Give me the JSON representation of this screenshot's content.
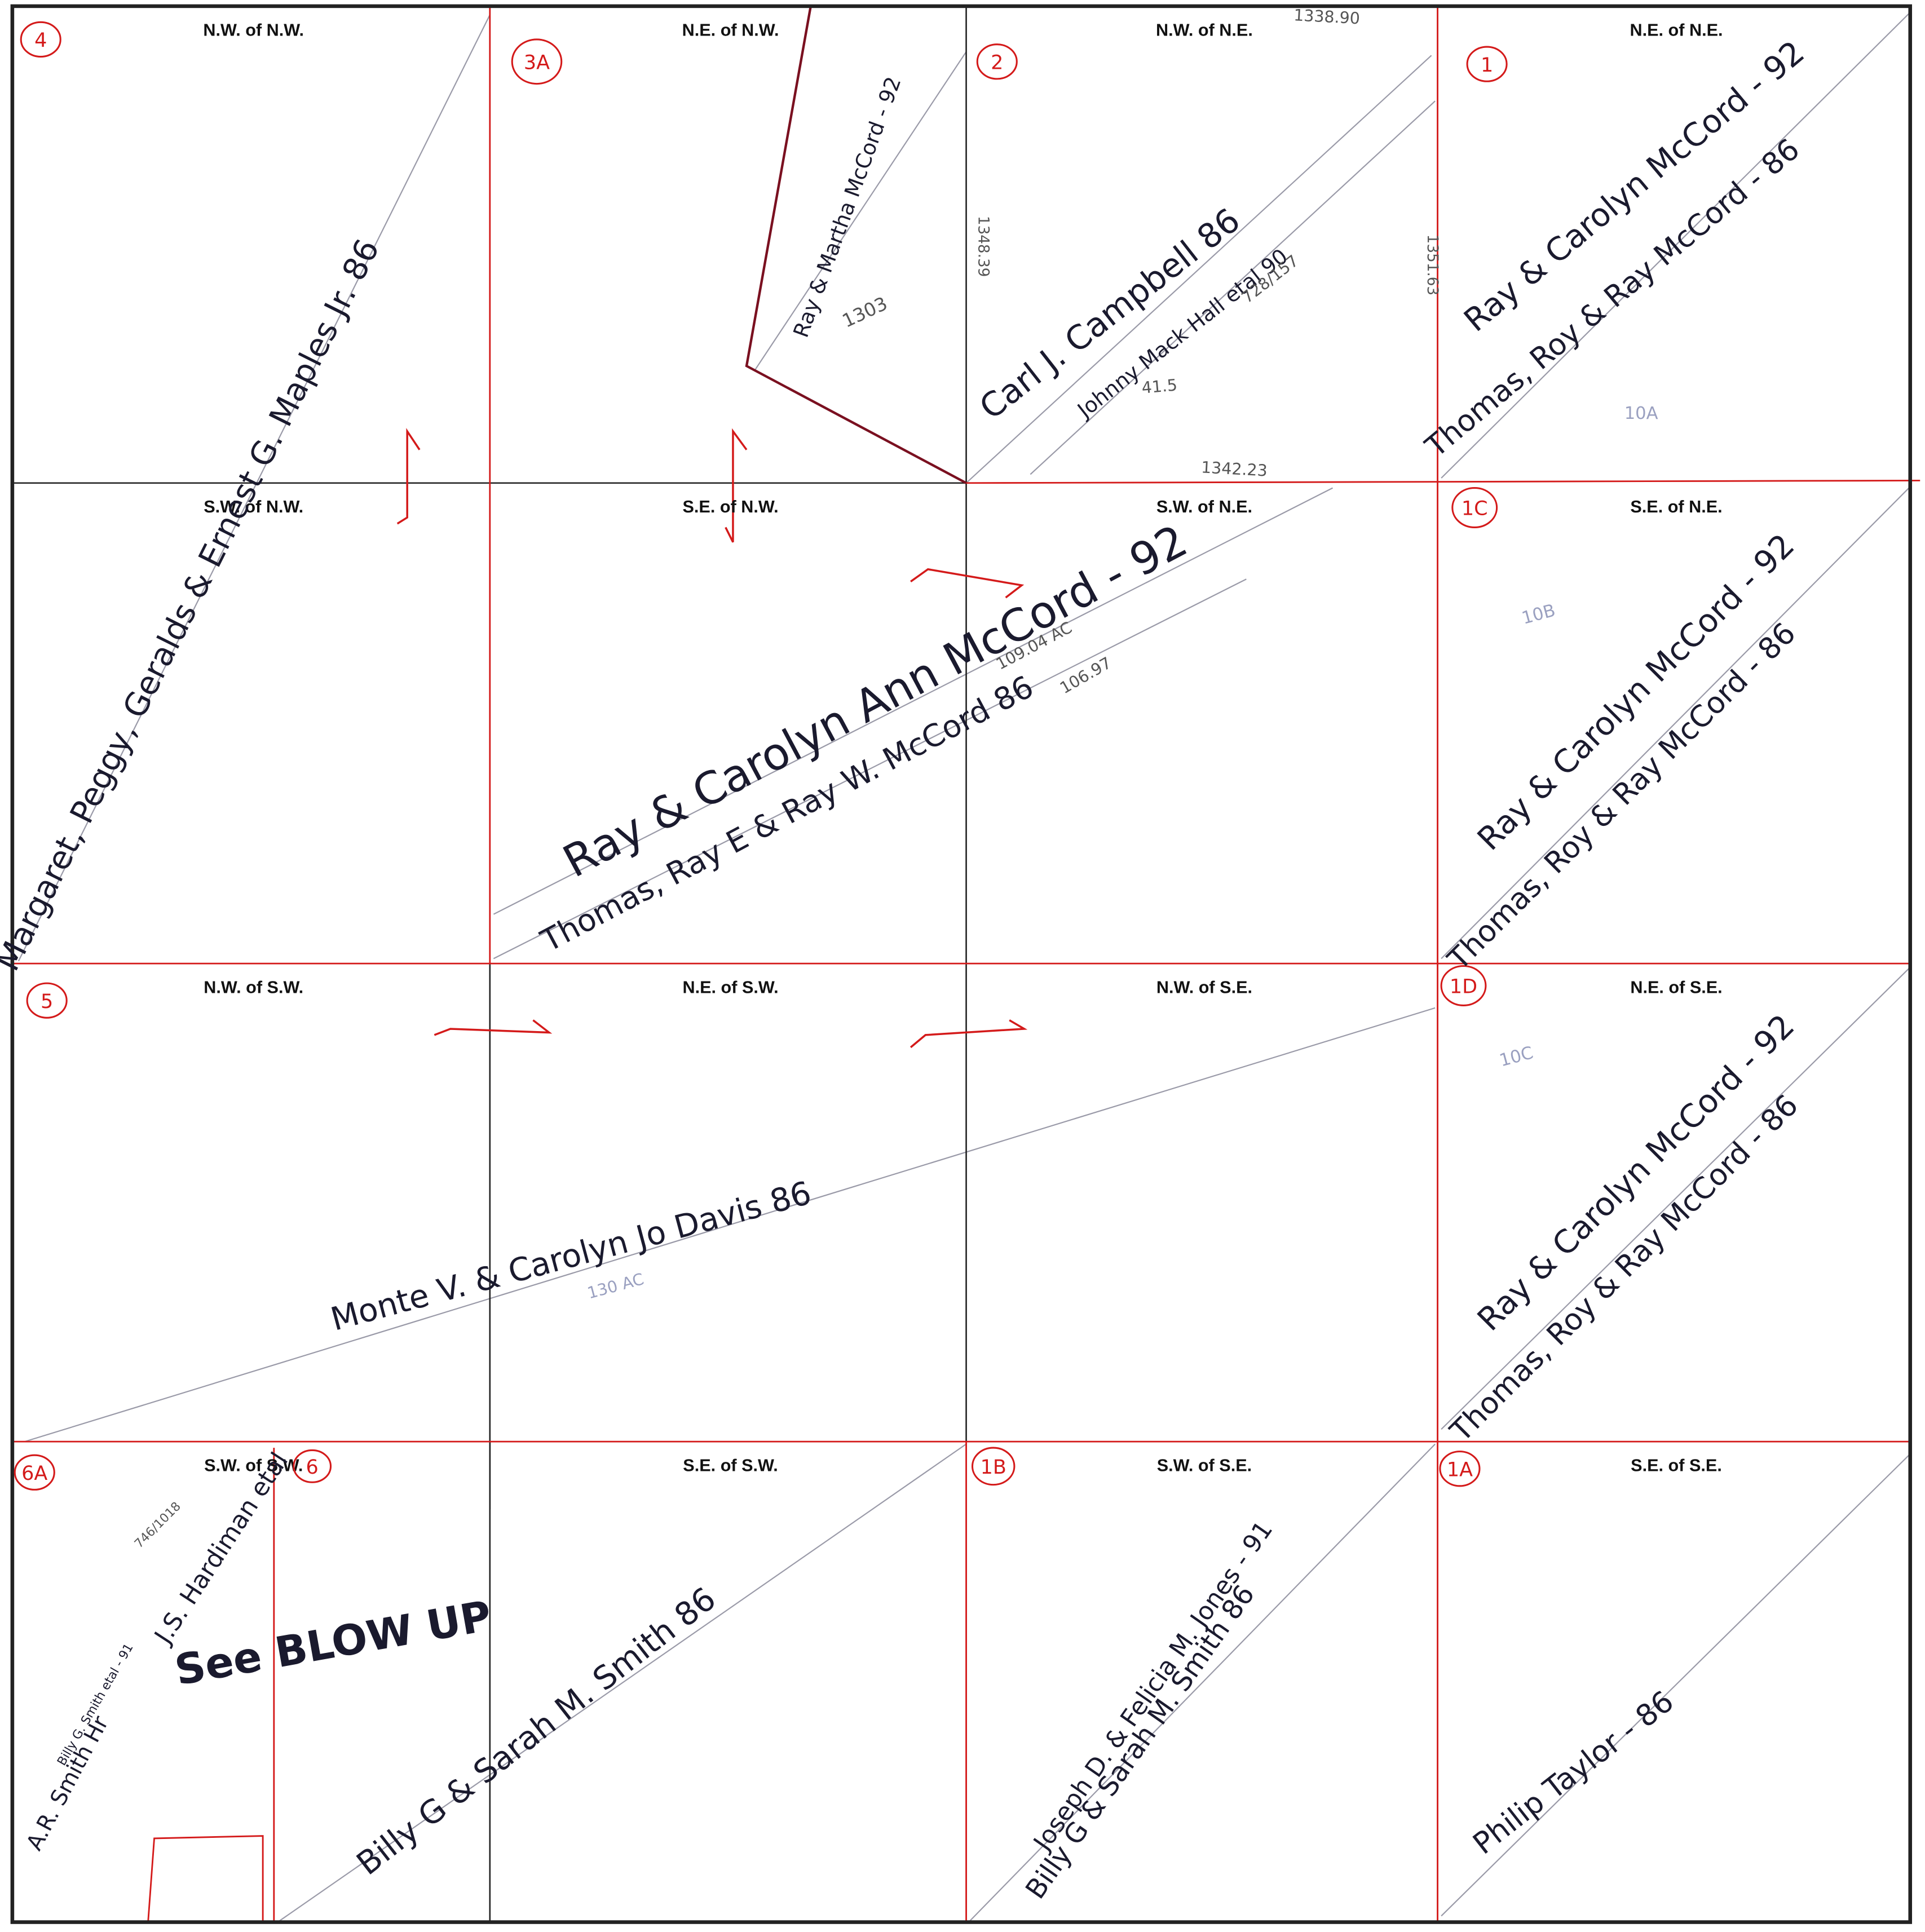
{
  "cells": [
    "N.W. of N.W.",
    "N.E. of N.W.",
    "N.W. of N.E.",
    "N.E. of N.E.",
    "S.W. of N.W.",
    "S.E. of N.W.",
    "S.W. of N.E.",
    "S.E. of N.E.",
    "N.W. of S.W.",
    "N.E. of S.W.",
    "N.W. of S.E.",
    "N.E. of S.E.",
    "S.W. of S.W.",
    "S.E. of S.W.",
    "S.W. of S.E.",
    "S.E. of S.E."
  ],
  "tags": [
    "4",
    "3A",
    "2",
    "1",
    "1C",
    "5",
    "1D",
    "6A",
    "6",
    "1B",
    "1A"
  ],
  "owners": [
    "Margaret, Peggy, Geralds & Ernest G. Maples Jr. 86",
    "Ray & Martha McCord - 92",
    "Carl J. Campbell 86",
    "Johnny Mack Hall etal 90",
    "Ray & Carolyn McCord - 92",
    "Thomas, Roy & Ray McCord - 86",
    "Ray & Carolyn Ann McCord - 92",
    "Thomas, Ray E & Ray W. McCord 86",
    "Ray & Carolyn McCord - 92",
    "Thomas, Roy & Ray McCord - 86",
    "Ray & Carolyn McCord - 92",
    "Thomas, Roy & Ray McCord - 86",
    "Monte V. & Carolyn Jo Davis 86",
    "J.S. Hardiman etal",
    "Billy G. Smith etal - 91",
    "A.R. Smith Hr",
    "Billy G & Sarah M. Smith 86",
    "Joseph D. & Felicia M. Jones - 91",
    "Billy G & Sarah M. Smith 86",
    "Philip Taylor - 86"
  ],
  "notes": [
    "1338.90",
    "1348.39",
    "1351.63",
    "1342.23",
    "1303",
    "728/157",
    "41.5",
    "10A",
    "109.04 AC",
    "106.97",
    "10B",
    "10C",
    "130 AC",
    "746/1018",
    "See BLOW UP"
  ]
}
